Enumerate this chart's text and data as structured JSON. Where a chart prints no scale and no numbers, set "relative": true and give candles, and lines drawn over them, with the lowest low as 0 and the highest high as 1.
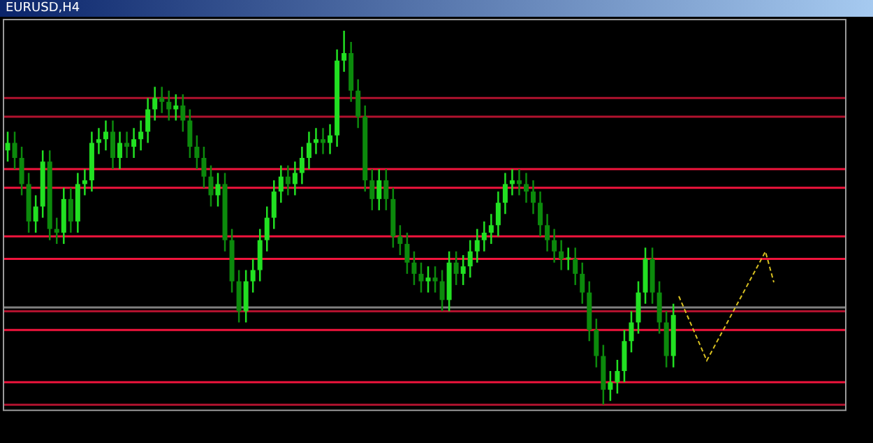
{
  "chart_data": {
    "type": "candlestick",
    "title": "EURUSD,H4",
    "relative": true,
    "legend": false,
    "colors": [
      "#22e022",
      "#0c8a0c",
      "#0c8a0c",
      "#0c8a0c",
      "#22e022",
      "#22e022",
      "#0c8a0c",
      "#0c8a0c",
      "#22e022",
      "#0c8a0c",
      "#22e022",
      "#22e022",
      "#22e022",
      "#22e022",
      "#22e022",
      "#0c8a0c",
      "#22e022",
      "#0c8a0c",
      "#22e022",
      "#22e022",
      "#22e022",
      "#22e022",
      "#0c8a0c",
      "#0c8a0c",
      "#22e022",
      "#0c8a0c",
      "#0c8a0c",
      "#0c8a0c",
      "#0c8a0c",
      "#0c8a0c",
      "#22e022",
      "#0c8a0c",
      "#0c8a0c",
      "#0c8a0c",
      "#22e022",
      "#22e022",
      "#22e022",
      "#22e022",
      "#22e022",
      "#22e022",
      "#0c8a0c",
      "#22e022",
      "#22e022",
      "#22e022",
      "#22e022",
      "#0c8a0c",
      "#22e022",
      "#22e022",
      "#22e022",
      "#0c8a0c",
      "#0c8a0c",
      "#0c8a0c",
      "#0c8a0c",
      "#22e022",
      "#0c8a0c",
      "#0c8a0c",
      "#0c8a0c",
      "#0c8a0c",
      "#0c8a0c",
      "#0c8a0c",
      "#22e022",
      "#0c8a0c",
      "#0c8a0c",
      "#22e022",
      "#0c8a0c",
      "#22e022",
      "#22e022",
      "#22e022",
      "#22e022",
      "#22e022",
      "#22e022",
      "#22e022",
      "#22e022",
      "#0c8a0c",
      "#0c8a0c",
      "#0c8a0c",
      "#0c8a0c",
      "#0c8a0c",
      "#0c8a0c",
      "#0c8a0c",
      "#22e022",
      "#0c8a0c",
      "#0c8a0c",
      "#0c8a0c",
      "#0c8a0c",
      "#0c8a0c",
      "#22e022",
      "#22e022",
      "#22e022",
      "#22e022",
      "#22e022",
      "#22e022",
      "#0c8a0c",
      "#0c8a0c",
      "#0c8a0c",
      "#22e022",
      null,
      null,
      null,
      null,
      null,
      null,
      null,
      null,
      null,
      null,
      null,
      null,
      null,
      null,
      null,
      null,
      null,
      null,
      null,
      null,
      null,
      null,
      null,
      null
    ],
    "categories": [
      null,
      null,
      null,
      null,
      null,
      null,
      null,
      null,
      null,
      null,
      null,
      null,
      null,
      null,
      null,
      null,
      null,
      null,
      null,
      null,
      null,
      null,
      null,
      null,
      null,
      null,
      null,
      null,
      null,
      null,
      null,
      null,
      null,
      null,
      null,
      null,
      null,
      null,
      null,
      null,
      null,
      null,
      null,
      null,
      null,
      null,
      null,
      null,
      null,
      null,
      null,
      null,
      null,
      null,
      null,
      null,
      null,
      null,
      null,
      null,
      null,
      null,
      null,
      null,
      null,
      null,
      null,
      null,
      null,
      null,
      null,
      null,
      null,
      null,
      null,
      null,
      null,
      null,
      null,
      null,
      null,
      null,
      null,
      null,
      null,
      null,
      null,
      null,
      null,
      null,
      null,
      null,
      null,
      null,
      null,
      null,
      null,
      null,
      null,
      null,
      null,
      null,
      null,
      null,
      null,
      null,
      null,
      null,
      null,
      null,
      null,
      null,
      null,
      null,
      null,
      null,
      null,
      null,
      null,
      null
    ],
    "ohlc": [
      [
        0.68,
        0.73,
        0.65,
        0.7
      ],
      [
        0.7,
        0.73,
        0.63,
        0.66
      ],
      [
        0.66,
        0.69,
        0.56,
        0.59
      ],
      [
        0.59,
        0.62,
        0.46,
        0.49
      ],
      [
        0.49,
        0.56,
        0.46,
        0.53
      ],
      [
        0.53,
        0.68,
        0.5,
        0.65
      ],
      [
        0.65,
        0.68,
        0.44,
        0.47
      ],
      [
        0.47,
        0.5,
        0.43,
        0.46
      ],
      [
        0.46,
        0.58,
        0.43,
        0.55
      ],
      [
        0.55,
        0.58,
        0.46,
        0.49
      ],
      [
        0.49,
        0.62,
        0.46,
        0.59
      ],
      [
        0.59,
        0.63,
        0.56,
        0.6
      ],
      [
        0.6,
        0.73,
        0.57,
        0.7
      ],
      [
        0.7,
        0.74,
        0.67,
        0.71
      ],
      [
        0.71,
        0.76,
        0.68,
        0.73
      ],
      [
        0.73,
        0.76,
        0.63,
        0.66
      ],
      [
        0.66,
        0.73,
        0.63,
        0.7
      ],
      [
        0.7,
        0.73,
        0.66,
        0.69
      ],
      [
        0.69,
        0.74,
        0.66,
        0.71
      ],
      [
        0.71,
        0.76,
        0.68,
        0.73
      ],
      [
        0.73,
        0.82,
        0.7,
        0.79
      ],
      [
        0.79,
        0.85,
        0.76,
        0.82
      ],
      [
        0.82,
        0.85,
        0.78,
        0.81
      ],
      [
        0.81,
        0.84,
        0.76,
        0.79
      ],
      [
        0.79,
        0.83,
        0.76,
        0.8
      ],
      [
        0.8,
        0.83,
        0.73,
        0.76
      ],
      [
        0.76,
        0.79,
        0.66,
        0.69
      ],
      [
        0.69,
        0.72,
        0.63,
        0.66
      ],
      [
        0.66,
        0.69,
        0.58,
        0.61
      ],
      [
        0.61,
        0.64,
        0.53,
        0.56
      ],
      [
        0.56,
        0.62,
        0.53,
        0.59
      ],
      [
        0.59,
        0.62,
        0.41,
        0.44
      ],
      [
        0.44,
        0.47,
        0.3,
        0.33
      ],
      [
        0.33,
        0.36,
        0.22,
        0.25
      ],
      [
        0.25,
        0.36,
        0.22,
        0.33
      ],
      [
        0.33,
        0.39,
        0.3,
        0.36
      ],
      [
        0.36,
        0.47,
        0.33,
        0.44
      ],
      [
        0.44,
        0.53,
        0.41,
        0.5
      ],
      [
        0.5,
        0.6,
        0.47,
        0.57
      ],
      [
        0.57,
        0.64,
        0.54,
        0.61
      ],
      [
        0.61,
        0.64,
        0.56,
        0.59
      ],
      [
        0.59,
        0.65,
        0.56,
        0.62
      ],
      [
        0.62,
        0.69,
        0.59,
        0.66
      ],
      [
        0.66,
        0.73,
        0.63,
        0.7
      ],
      [
        0.7,
        0.74,
        0.67,
        0.71
      ],
      [
        0.71,
        0.74,
        0.67,
        0.7
      ],
      [
        0.7,
        0.75,
        0.67,
        0.72
      ],
      [
        0.72,
        0.95,
        0.69,
        0.92
      ],
      [
        0.92,
        1.0,
        0.89,
        0.94
      ],
      [
        0.94,
        0.97,
        0.81,
        0.84
      ],
      [
        0.84,
        0.87,
        0.74,
        0.77
      ],
      [
        0.77,
        0.8,
        0.57,
        0.6
      ],
      [
        0.6,
        0.63,
        0.52,
        0.55
      ],
      [
        0.55,
        0.63,
        0.52,
        0.6
      ],
      [
        0.6,
        0.63,
        0.52,
        0.55
      ],
      [
        0.55,
        0.58,
        0.42,
        0.45
      ],
      [
        0.45,
        0.48,
        0.4,
        0.43
      ],
      [
        0.43,
        0.46,
        0.35,
        0.38
      ],
      [
        0.38,
        0.41,
        0.32,
        0.35
      ],
      [
        0.35,
        0.38,
        0.3,
        0.33
      ],
      [
        0.33,
        0.37,
        0.3,
        0.34
      ],
      [
        0.34,
        0.37,
        0.3,
        0.33
      ],
      [
        0.33,
        0.36,
        0.25,
        0.28
      ],
      [
        0.28,
        0.41,
        0.25,
        0.38
      ],
      [
        0.38,
        0.41,
        0.32,
        0.35
      ],
      [
        0.35,
        0.4,
        0.32,
        0.37
      ],
      [
        0.37,
        0.44,
        0.34,
        0.41
      ],
      [
        0.41,
        0.47,
        0.38,
        0.44
      ],
      [
        0.44,
        0.49,
        0.41,
        0.46
      ],
      [
        0.46,
        0.51,
        0.43,
        0.48
      ],
      [
        0.48,
        0.57,
        0.45,
        0.54
      ],
      [
        0.54,
        0.62,
        0.51,
        0.59
      ],
      [
        0.59,
        0.63,
        0.56,
        0.6
      ],
      [
        0.6,
        0.63,
        0.56,
        0.59
      ],
      [
        0.59,
        0.62,
        0.54,
        0.57
      ],
      [
        0.57,
        0.6,
        0.51,
        0.54
      ],
      [
        0.54,
        0.57,
        0.45,
        0.48
      ],
      [
        0.48,
        0.51,
        0.41,
        0.44
      ],
      [
        0.44,
        0.47,
        0.38,
        0.41
      ],
      [
        0.41,
        0.44,
        0.36,
        0.39
      ],
      [
        0.39,
        0.42,
        0.36,
        0.39
      ],
      [
        0.39,
        0.42,
        0.32,
        0.35
      ],
      [
        0.35,
        0.38,
        0.27,
        0.3
      ],
      [
        0.3,
        0.33,
        0.17,
        0.2
      ],
      [
        0.2,
        0.23,
        0.1,
        0.13
      ],
      [
        0.13,
        0.16,
        0.0,
        0.04
      ],
      [
        0.04,
        0.09,
        0.01,
        0.06
      ],
      [
        0.06,
        0.12,
        0.03,
        0.09
      ],
      [
        0.09,
        0.2,
        0.06,
        0.17
      ],
      [
        0.17,
        0.25,
        0.14,
        0.22
      ],
      [
        0.22,
        0.33,
        0.19,
        0.3
      ],
      [
        0.3,
        0.42,
        0.27,
        0.39
      ],
      [
        0.39,
        0.42,
        0.27,
        0.3
      ],
      [
        0.3,
        0.33,
        0.19,
        0.22
      ],
      [
        0.22,
        0.25,
        0.1,
        0.13
      ],
      [
        0.13,
        0.27,
        0.1,
        0.24
      ],
      null,
      null,
      null,
      null,
      null,
      null,
      null,
      null,
      null,
      null,
      null,
      null,
      null,
      null,
      null,
      null,
      null,
      null,
      null,
      null,
      null,
      null,
      null,
      null
    ],
    "ref_lines": [
      {
        "axis": "y",
        "value": 0.82,
        "color": "#b0122e"
      },
      {
        "axis": "y",
        "value": 0.77,
        "color": "#b0122e"
      },
      {
        "axis": "y",
        "value": 0.63,
        "color": "#f0143c"
      },
      {
        "axis": "y",
        "value": 0.58,
        "color": "#f0143c"
      },
      {
        "axis": "y",
        "value": 0.45,
        "color": "#f0143c"
      },
      {
        "axis": "y",
        "value": 0.39,
        "color": "#f0143c"
      },
      {
        "axis": "y",
        "value": 0.26,
        "color": "#808080"
      },
      {
        "axis": "y",
        "value": 0.25,
        "color": "#b0122e"
      },
      {
        "axis": "y",
        "value": 0.2,
        "color": "#f0143c"
      },
      {
        "axis": "y",
        "value": 0.06,
        "color": "#f0143c"
      },
      {
        "axis": "y",
        "value": 0.0,
        "color": "#b0122e"
      }
    ]
  }
}
